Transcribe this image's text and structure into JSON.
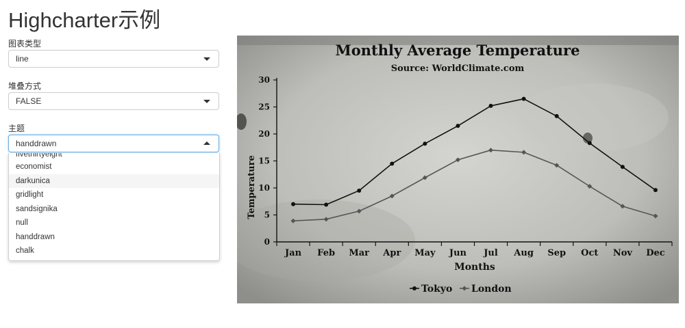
{
  "app_title": "Highcharter示例",
  "controls": {
    "chart_type": {
      "label": "图表类型",
      "value": "line"
    },
    "stacking": {
      "label": "堆叠方式",
      "value": "FALSE"
    },
    "theme": {
      "label": "主题",
      "value": "handdrawn",
      "options": [
        "fivethirtyeight",
        "economist",
        "darkunica",
        "gridlight",
        "sandsignika",
        "null",
        "handdrawn",
        "chalk"
      ],
      "highlighted": "darkunica"
    }
  },
  "chart_data": {
    "type": "line",
    "title": "Monthly Average Temperature",
    "subtitle": "Source: WorldClimate.com",
    "xlabel": "Months",
    "ylabel": "Temperature",
    "categories": [
      "Jan",
      "Feb",
      "Mar",
      "Apr",
      "May",
      "Jun",
      "Jul",
      "Aug",
      "Sep",
      "Oct",
      "Nov",
      "Dec"
    ],
    "ylim": [
      0,
      30
    ],
    "yticks": [
      0,
      5,
      10,
      15,
      20,
      25,
      30
    ],
    "grid": false,
    "legend_position": "bottom-center",
    "series": [
      {
        "name": "Tokyo",
        "marker": "circle",
        "color": "#111111",
        "values": [
          7.0,
          6.9,
          9.5,
          14.5,
          18.2,
          21.5,
          25.2,
          26.5,
          23.3,
          18.3,
          13.9,
          9.6
        ]
      },
      {
        "name": "London",
        "marker": "diamond",
        "color": "#555555",
        "values": [
          3.9,
          4.2,
          5.7,
          8.5,
          11.9,
          15.2,
          17.0,
          16.6,
          14.2,
          10.3,
          6.6,
          4.8
        ]
      }
    ]
  }
}
